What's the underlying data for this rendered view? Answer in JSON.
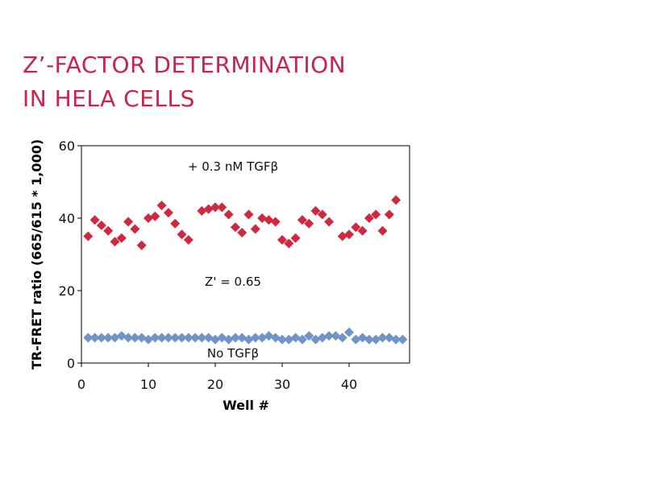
{
  "page": {
    "title_line1": "Z’-FACTOR DETERMINATION",
    "title_line2": "IN HELA CELLS",
    "colors": {
      "title": "#c8234b",
      "series_tgf": "#d0293f",
      "series_no_tgf": "#6f95c8"
    }
  },
  "chart_data": {
    "type": "scatter",
    "title": "",
    "xlabel": "Well #",
    "ylabel": "TR-FRET ratio (665/615 * 1,000)",
    "xlim": [
      0,
      49
    ],
    "ylim": [
      0,
      60
    ],
    "x_ticks": [
      0,
      10,
      20,
      30,
      40
    ],
    "y_ticks": [
      0,
      20,
      40,
      60
    ],
    "grid": false,
    "series": [
      {
        "name": "+ 0.3 nM TGFβ",
        "marker": "diamond",
        "color": "#d0293f",
        "x": [
          1,
          2,
          3,
          4,
          5,
          6,
          7,
          8,
          9,
          10,
          11,
          12,
          13,
          14,
          15,
          16,
          18,
          19,
          20,
          21,
          22,
          23,
          24,
          25,
          26,
          27,
          28,
          29,
          30,
          31,
          32,
          33,
          34,
          35,
          36,
          37,
          39,
          40,
          41,
          42,
          43,
          44,
          45,
          46,
          47
        ],
        "y": [
          35,
          39.5,
          38,
          36.5,
          33.5,
          34.5,
          39,
          37,
          32.5,
          40,
          40.5,
          43.5,
          41.5,
          38.5,
          35.5,
          34,
          42,
          42.5,
          43,
          43,
          41,
          37.5,
          36,
          41,
          37,
          40,
          39.5,
          39,
          34,
          33,
          34.5,
          39.5,
          38.5,
          42,
          41,
          39,
          35,
          35.5,
          37.5,
          36.5,
          40,
          41,
          36.5,
          41,
          45
        ]
      },
      {
        "name": "No TGFβ",
        "marker": "diamond",
        "color": "#6f95c8",
        "x": [
          1,
          2,
          3,
          4,
          5,
          6,
          7,
          8,
          9,
          10,
          11,
          12,
          13,
          14,
          15,
          16,
          17,
          18,
          19,
          20,
          21,
          22,
          23,
          24,
          25,
          26,
          27,
          28,
          29,
          30,
          31,
          32,
          33,
          34,
          35,
          36,
          37,
          38,
          39,
          40,
          41,
          42,
          43,
          44,
          45,
          46,
          47,
          48
        ],
        "y": [
          7,
          7,
          7,
          7,
          7,
          7.5,
          7,
          7,
          7,
          6.5,
          7,
          7,
          7,
          7,
          7,
          7,
          7,
          7,
          7,
          6.5,
          7,
          6.5,
          7,
          7,
          6.5,
          7,
          7,
          7.5,
          7,
          6.5,
          6.5,
          7,
          6.5,
          7.5,
          6.5,
          7,
          7.5,
          7.5,
          7,
          8.5,
          6.5,
          7,
          6.5,
          6.5,
          7,
          7,
          6.5,
          6.5
        ]
      }
    ],
    "annotations": {
      "tgf_label": "+ 0.3 nM TGFβ",
      "z_prime": "Z' = 0.65",
      "no_tgf_label": "No TGFβ"
    }
  }
}
